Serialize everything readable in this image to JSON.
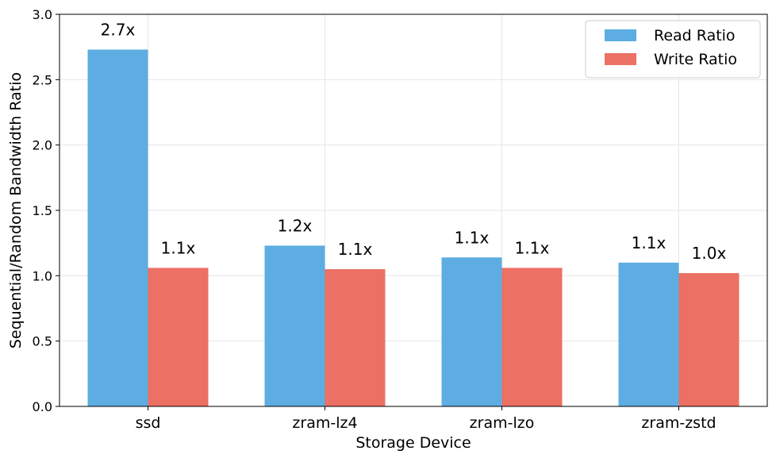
{
  "chart_data": {
    "type": "bar",
    "title": "",
    "xlabel": "Storage Device",
    "ylabel": "Sequential/Random Bandwidth Ratio",
    "categories": [
      "ssd",
      "zram-lz4",
      "zram-lzo",
      "zram-zstd"
    ],
    "series": [
      {
        "name": "Read Ratio",
        "color": "#5DADE2",
        "values": [
          2.73,
          1.23,
          1.14,
          1.1
        ],
        "labels": [
          "2.7x",
          "1.2x",
          "1.1x",
          "1.1x"
        ]
      },
      {
        "name": "Write Ratio",
        "color": "#EC7063",
        "values": [
          1.06,
          1.05,
          1.06,
          1.02
        ],
        "labels": [
          "1.1x",
          "1.1x",
          "1.1x",
          "1.0x"
        ]
      }
    ],
    "ylim": [
      0,
      3.0
    ],
    "yticks": [
      0.0,
      0.5,
      1.0,
      1.5,
      2.0,
      2.5,
      3.0
    ],
    "ytick_labels": [
      "0.0",
      "0.5",
      "1.0",
      "1.5",
      "2.0",
      "2.5",
      "3.0"
    ],
    "grid": true,
    "legend_position": "top-right"
  }
}
